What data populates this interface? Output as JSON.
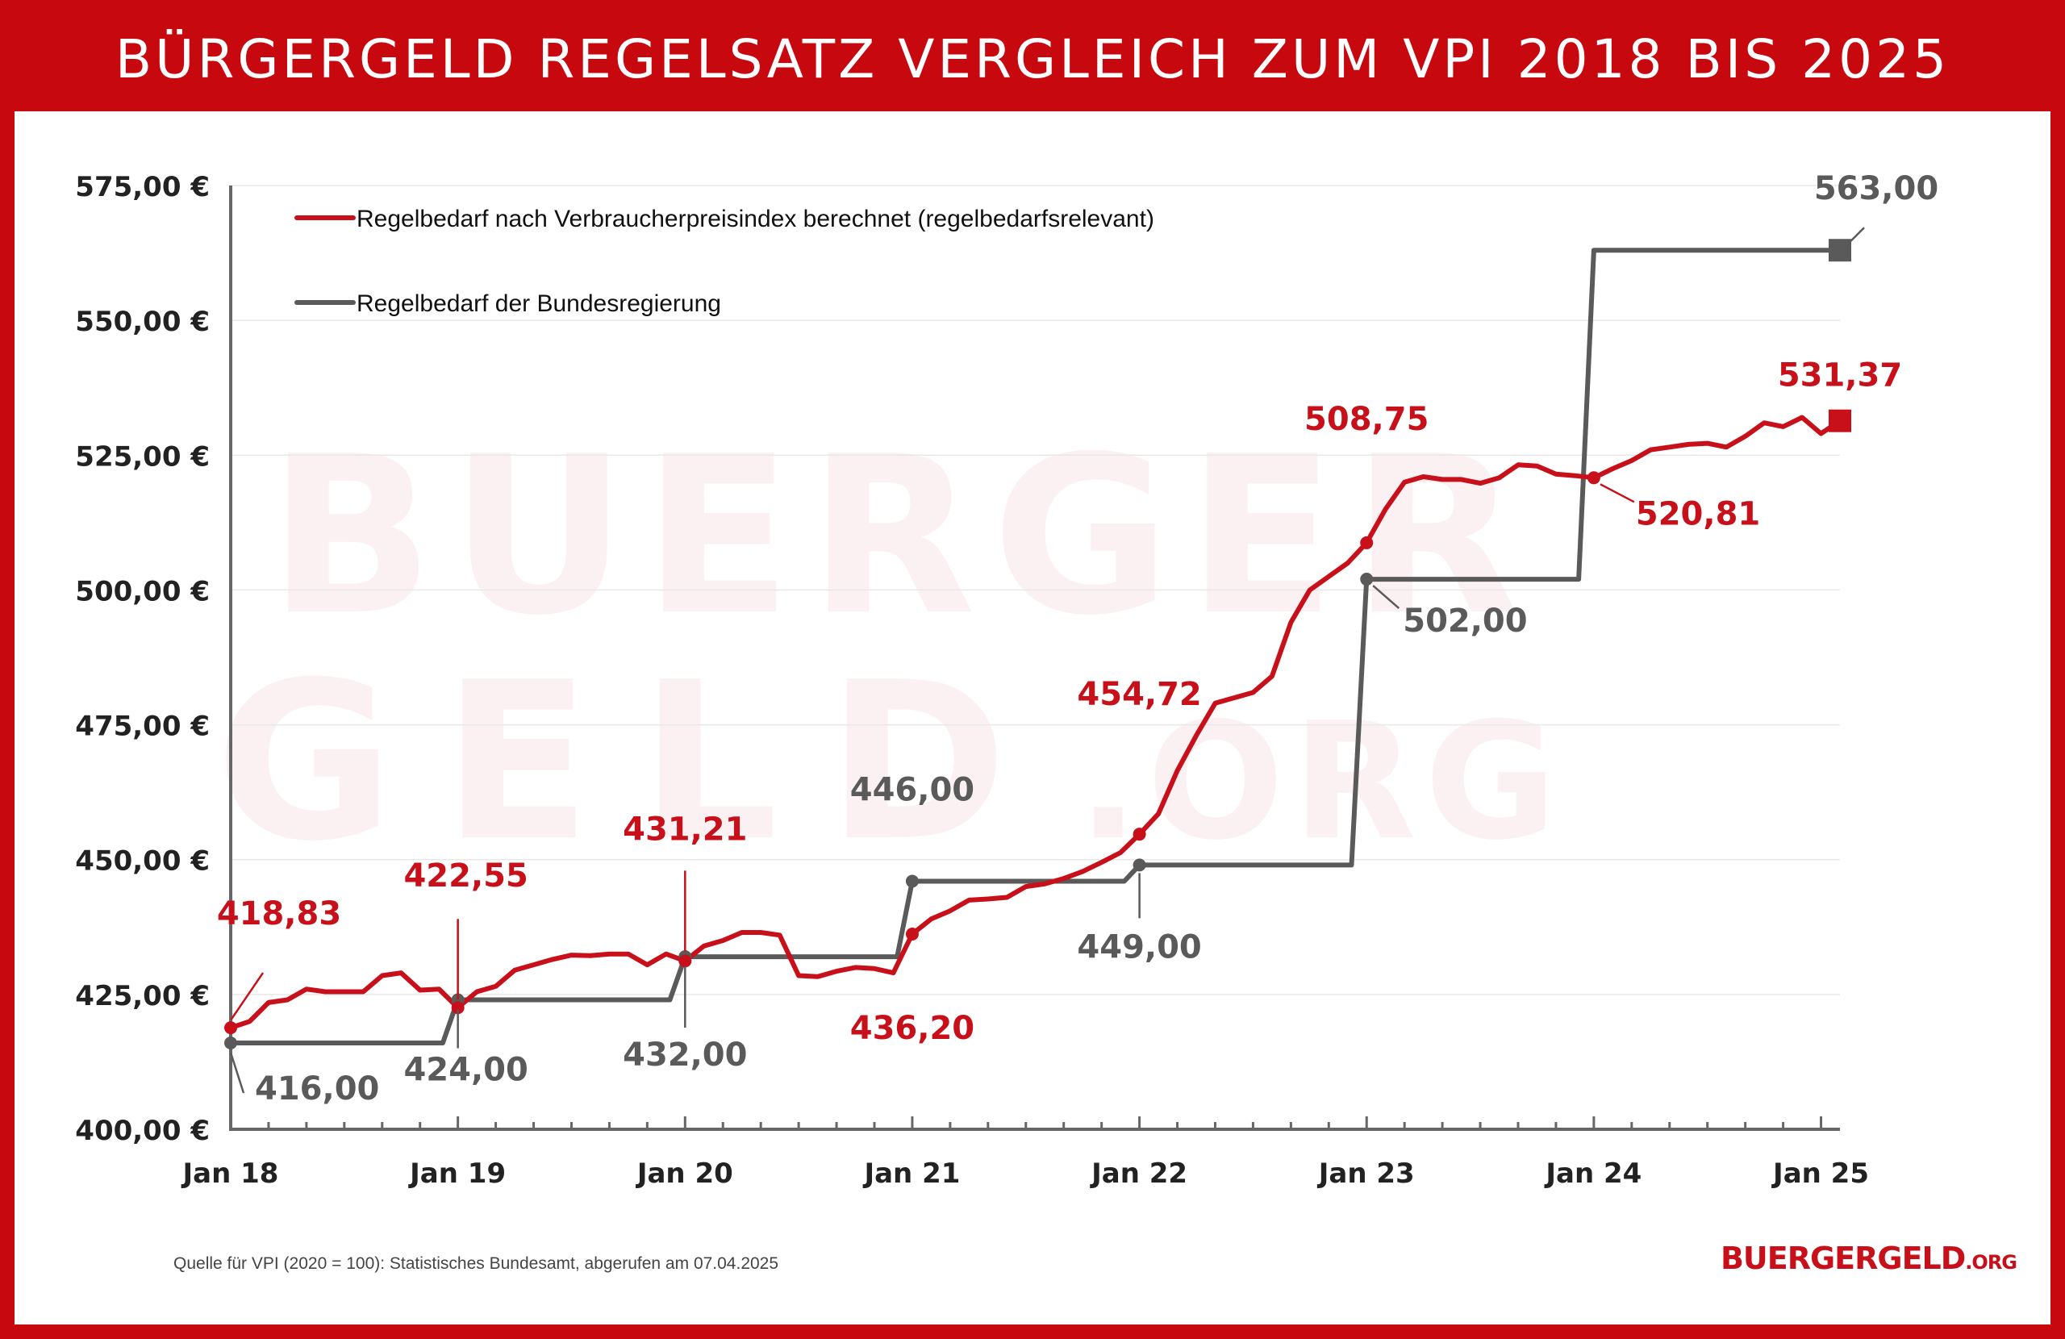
{
  "title": "BÜRGERGELD REGELSATZ VERGLEICH ZUM VPI 2018 BIS 2025",
  "watermark": {
    "line1": "BUERGER",
    "line2": "GELD",
    "line3": ".ORG"
  },
  "source_note": "Quelle für VPI (2020 = 100): Statistisches Bundesamt, abgerufen am 07.04.2025",
  "brand": {
    "name": "BUERGERGELD",
    "tld": ".ORG"
  },
  "colors": {
    "red": "#c8101a",
    "gray": "#5a5a5a",
    "axis": "#666666",
    "grid": "#e8e8e8"
  },
  "chart_data": {
    "type": "line",
    "title": "BÜRGERGELD REGELSATZ VERGLEICH ZUM VPI 2018 BIS 2025",
    "xlabel": "",
    "ylabel": "",
    "xlim": [
      0,
      85
    ],
    "ylim": [
      400,
      575
    ],
    "x_ticks": [
      {
        "x": 0,
        "label": "Jan 18"
      },
      {
        "x": 12,
        "label": "Jan 19"
      },
      {
        "x": 24,
        "label": "Jan 20"
      },
      {
        "x": 36,
        "label": "Jan 21"
      },
      {
        "x": 48,
        "label": "Jan 22"
      },
      {
        "x": 60,
        "label": "Jan 23"
      },
      {
        "x": 72,
        "label": "Jan 24"
      },
      {
        "x": 84,
        "label": "Jan 25"
      }
    ],
    "y_ticks": [
      {
        "v": 400,
        "label": "400,00 €"
      },
      {
        "v": 425,
        "label": "425,00 €"
      },
      {
        "v": 450,
        "label": "450,00 €"
      },
      {
        "v": 475,
        "label": "475,00 €"
      },
      {
        "v": 500,
        "label": "500,00 €"
      },
      {
        "v": 525,
        "label": "525,00 €"
      },
      {
        "v": 550,
        "label": "550,00 €"
      },
      {
        "v": 575,
        "label": "575,00 €"
      }
    ],
    "grid": true,
    "legend_position": "top-left",
    "series": [
      {
        "name": "Regelbedarf nach Verbraucherpreisindex berechnet (regelbedarfsrelevant)",
        "color": "#c8101a",
        "line_style": "continuous",
        "points": [
          [
            0,
            418.83
          ],
          [
            1,
            420.0
          ],
          [
            2,
            423.5
          ],
          [
            3,
            424.0
          ],
          [
            4,
            426.0
          ],
          [
            5,
            425.5
          ],
          [
            6,
            425.5
          ],
          [
            7,
            425.5
          ],
          [
            8,
            428.5
          ],
          [
            9,
            429.0
          ],
          [
            10,
            425.8
          ],
          [
            11,
            426.0
          ],
          [
            12,
            422.55
          ],
          [
            13,
            425.5
          ],
          [
            14,
            426.5
          ],
          [
            15,
            429.5
          ],
          [
            16,
            430.5
          ],
          [
            17,
            431.5
          ],
          [
            18,
            432.3
          ],
          [
            19,
            432.2
          ],
          [
            20,
            432.5
          ],
          [
            21,
            432.5
          ],
          [
            22,
            430.5
          ],
          [
            23,
            432.5
          ],
          [
            24,
            431.21
          ],
          [
            25,
            434.0
          ],
          [
            26,
            435.0
          ],
          [
            27,
            436.5
          ],
          [
            28,
            436.5
          ],
          [
            29,
            436.0
          ],
          [
            30,
            428.5
          ],
          [
            31,
            428.3
          ],
          [
            32,
            429.3
          ],
          [
            33,
            430.0
          ],
          [
            34,
            429.8
          ],
          [
            35,
            429.0
          ],
          [
            36,
            436.2
          ],
          [
            37,
            439.0
          ],
          [
            38,
            440.5
          ],
          [
            39,
            442.5
          ],
          [
            40,
            442.7
          ],
          [
            41,
            443.0
          ],
          [
            42,
            445.0
          ],
          [
            43,
            445.5
          ],
          [
            44,
            446.5
          ],
          [
            45,
            447.8
          ],
          [
            46,
            449.5
          ],
          [
            47,
            451.3
          ],
          [
            48,
            454.72
          ],
          [
            49,
            458.5
          ],
          [
            50,
            466.5
          ],
          [
            51,
            473.0
          ],
          [
            52,
            479.0
          ],
          [
            53,
            480.0
          ],
          [
            54,
            481.0
          ],
          [
            55,
            484.0
          ],
          [
            56,
            494.0
          ],
          [
            57,
            500.0
          ],
          [
            58,
            502.5
          ],
          [
            59,
            505.0
          ],
          [
            60,
            508.75
          ],
          [
            61,
            515.0
          ],
          [
            62,
            520.0
          ],
          [
            63,
            521.0
          ],
          [
            64,
            520.5
          ],
          [
            65,
            520.5
          ],
          [
            66,
            519.8
          ],
          [
            67,
            520.8
          ],
          [
            68,
            523.2
          ],
          [
            69,
            523.0
          ],
          [
            70,
            521.5
          ],
          [
            71,
            521.2
          ],
          [
            72,
            520.81
          ],
          [
            73,
            522.5
          ],
          [
            74,
            524.0
          ],
          [
            75,
            526.0
          ],
          [
            76,
            526.5
          ],
          [
            77,
            527.0
          ],
          [
            78,
            527.2
          ],
          [
            79,
            526.5
          ],
          [
            80,
            528.5
          ],
          [
            81,
            531.0
          ],
          [
            82,
            530.3
          ],
          [
            83,
            532.0
          ],
          [
            84,
            529.0
          ],
          [
            85,
            531.37
          ]
        ],
        "labels": [
          {
            "x": 0,
            "y": 418.83,
            "text": "418,83"
          },
          {
            "x": 12,
            "y": 422.55,
            "text": "422,55"
          },
          {
            "x": 24,
            "y": 431.21,
            "text": "431,21"
          },
          {
            "x": 36,
            "y": 436.2,
            "text": "436,20"
          },
          {
            "x": 48,
            "y": 454.72,
            "text": "454,72"
          },
          {
            "x": 60,
            "y": 508.75,
            "text": "508,75"
          },
          {
            "x": 72,
            "y": 520.81,
            "text": "520,81"
          },
          {
            "x": 85,
            "y": 531.37,
            "text": "531,37"
          }
        ]
      },
      {
        "name": "Regelbedarf der Bundesregierung",
        "color": "#5a5a5a",
        "line_style": "step",
        "points": [
          [
            0,
            416
          ],
          [
            11.2,
            416
          ],
          [
            12,
            424
          ],
          [
            23.2,
            424
          ],
          [
            24,
            432
          ],
          [
            35.2,
            432
          ],
          [
            36,
            446
          ],
          [
            47.2,
            446
          ],
          [
            48,
            449
          ],
          [
            59.2,
            449
          ],
          [
            60,
            502
          ],
          [
            71.2,
            502
          ],
          [
            72,
            563
          ],
          [
            85,
            563
          ]
        ],
        "labels": [
          {
            "x": 0,
            "y": 416,
            "text": "416,00"
          },
          {
            "x": 12,
            "y": 424,
            "text": "424,00"
          },
          {
            "x": 24,
            "y": 432,
            "text": "432,00"
          },
          {
            "x": 36,
            "y": 446,
            "text": "446,00"
          },
          {
            "x": 48,
            "y": 449,
            "text": "449,00"
          },
          {
            "x": 60,
            "y": 502,
            "text": "502,00"
          },
          {
            "x": 85,
            "y": 563,
            "text": "563,00"
          }
        ]
      }
    ]
  }
}
